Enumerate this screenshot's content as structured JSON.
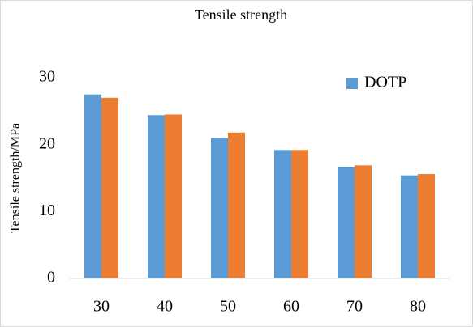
{
  "chart_data": {
    "type": "bar",
    "title": "Tensile strength",
    "y_label": "Tensile strength/MPa",
    "categories": [
      "30",
      "40",
      "50",
      "60",
      "70",
      "80"
    ],
    "series": [
      {
        "name": "DOTP",
        "color": "#5b9bd5",
        "values": [
          27.5,
          24.4,
          21.0,
          19.2,
          16.7,
          15.4
        ]
      },
      {
        "color": "#ed7d31",
        "values": [
          27.0,
          24.5,
          21.8,
          19.2,
          16.9,
          15.6
        ]
      }
    ],
    "ylim": [
      0,
      30
    ],
    "yticks": [
      0,
      10,
      20,
      30
    ],
    "legend": "upper right"
  }
}
